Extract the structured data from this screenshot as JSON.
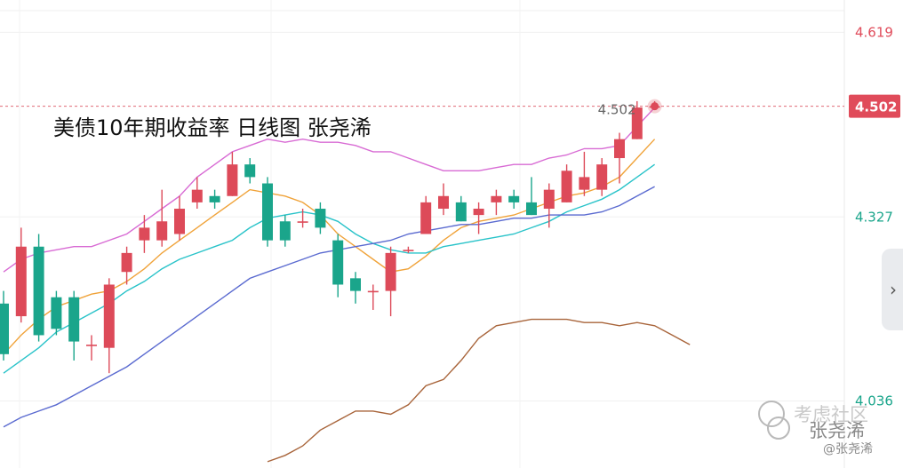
{
  "chart_data": {
    "type": "candlestick",
    "title": "美债10年期收益率 日线图  张尧浠",
    "y_ticks": [
      "4.619",
      "4.327",
      "4.036"
    ],
    "current_price": "4.502",
    "current_price_marker": "4.502",
    "ylim": [
      3.93,
      4.67
    ],
    "candles": [
      {
        "o": 4.19,
        "c": 4.11,
        "h": 4.21,
        "l": 4.1
      },
      {
        "o": 4.17,
        "c": 4.28,
        "h": 4.31,
        "l": 4.16
      },
      {
        "o": 4.28,
        "c": 4.14,
        "h": 4.3,
        "l": 4.13
      },
      {
        "o": 4.2,
        "c": 4.15,
        "h": 4.21,
        "l": 4.14
      },
      {
        "o": 4.2,
        "c": 4.13,
        "h": 4.21,
        "l": 4.1
      },
      {
        "o": 4.125,
        "c": 4.125,
        "h": 4.14,
        "l": 4.1
      },
      {
        "o": 4.12,
        "c": 4.22,
        "h": 4.23,
        "l": 4.08
      },
      {
        "o": 4.24,
        "c": 4.27,
        "h": 4.28,
        "l": 4.22
      },
      {
        "o": 4.29,
        "c": 4.31,
        "h": 4.33,
        "l": 4.27
      },
      {
        "o": 4.29,
        "c": 4.32,
        "h": 4.37,
        "l": 4.28
      },
      {
        "o": 4.3,
        "c": 4.34,
        "h": 4.36,
        "l": 4.29
      },
      {
        "o": 4.35,
        "c": 4.37,
        "h": 4.39,
        "l": 4.34
      },
      {
        "o": 4.36,
        "c": 4.35,
        "h": 4.37,
        "l": 4.34
      },
      {
        "o": 4.36,
        "c": 4.41,
        "h": 4.43,
        "l": 4.36
      },
      {
        "o": 4.41,
        "c": 4.39,
        "h": 4.42,
        "l": 4.38
      },
      {
        "o": 4.38,
        "c": 4.29,
        "h": 4.39,
        "l": 4.28
      },
      {
        "o": 4.32,
        "c": 4.29,
        "h": 4.33,
        "l": 4.28
      },
      {
        "o": 4.32,
        "c": 4.32,
        "h": 4.34,
        "l": 4.31
      },
      {
        "o": 4.34,
        "c": 4.31,
        "h": 4.35,
        "l": 4.3
      },
      {
        "o": 4.29,
        "c": 4.22,
        "h": 4.3,
        "l": 4.2
      },
      {
        "o": 4.23,
        "c": 4.21,
        "h": 4.24,
        "l": 4.19
      },
      {
        "o": 4.21,
        "c": 4.21,
        "h": 4.22,
        "l": 4.18
      },
      {
        "o": 4.21,
        "c": 4.27,
        "h": 4.28,
        "l": 4.17
      },
      {
        "o": 4.275,
        "c": 4.275,
        "h": 4.28,
        "l": 4.27
      },
      {
        "o": 4.3,
        "c": 4.35,
        "h": 4.36,
        "l": 4.3
      },
      {
        "o": 4.34,
        "c": 4.36,
        "h": 4.38,
        "l": 4.33
      },
      {
        "o": 4.35,
        "c": 4.32,
        "h": 4.36,
        "l": 4.32
      },
      {
        "o": 4.33,
        "c": 4.34,
        "h": 4.35,
        "l": 4.3
      },
      {
        "o": 4.35,
        "c": 4.36,
        "h": 4.37,
        "l": 4.33
      },
      {
        "o": 4.36,
        "c": 4.35,
        "h": 4.37,
        "l": 4.34
      },
      {
        "o": 4.35,
        "c": 4.33,
        "h": 4.39,
        "l": 4.33
      },
      {
        "o": 4.34,
        "c": 4.37,
        "h": 4.38,
        "l": 4.31
      },
      {
        "o": 4.35,
        "c": 4.4,
        "h": 4.41,
        "l": 4.35
      },
      {
        "o": 4.37,
        "c": 4.39,
        "h": 4.43,
        "l": 4.36
      },
      {
        "o": 4.37,
        "c": 4.41,
        "h": 4.42,
        "l": 4.36
      },
      {
        "o": 4.42,
        "c": 4.45,
        "h": 4.46,
        "l": 4.38
      },
      {
        "o": 4.45,
        "c": 4.5,
        "h": 4.51,
        "l": 4.45
      },
      {
        "o": 4.5,
        "c": 4.502,
        "h": 4.51,
        "l": 4.5
      }
    ],
    "overlays": [
      {
        "color": "#d86bd4",
        "values": [
          4.24,
          4.26,
          4.27,
          4.275,
          4.28,
          4.28,
          4.29,
          4.3,
          4.32,
          4.34,
          4.36,
          4.39,
          4.41,
          4.43,
          4.44,
          4.45,
          4.445,
          4.45,
          4.445,
          4.445,
          4.44,
          4.43,
          4.43,
          4.42,
          4.41,
          4.4,
          4.4,
          4.4,
          4.405,
          4.41,
          4.41,
          4.42,
          4.425,
          4.435,
          4.435,
          4.44,
          4.47,
          4.5
        ]
      },
      {
        "color": "#f0a33a",
        "values": [
          4.11,
          4.14,
          4.165,
          4.185,
          4.195,
          4.205,
          4.21,
          4.225,
          4.245,
          4.27,
          4.29,
          4.31,
          4.33,
          4.35,
          4.37,
          4.365,
          4.36,
          4.35,
          4.33,
          4.3,
          4.28,
          4.26,
          4.24,
          4.245,
          4.265,
          4.29,
          4.31,
          4.32,
          4.325,
          4.33,
          4.34,
          4.35,
          4.36,
          4.365,
          4.375,
          4.39,
          4.42,
          4.45
        ]
      },
      {
        "color": "#29c3c9",
        "values": [
          4.08,
          4.1,
          4.12,
          4.145,
          4.16,
          4.175,
          4.19,
          4.21,
          4.225,
          4.245,
          4.26,
          4.27,
          4.28,
          4.29,
          4.31,
          4.325,
          4.33,
          4.335,
          4.33,
          4.32,
          4.3,
          4.285,
          4.275,
          4.27,
          4.27,
          4.28,
          4.285,
          4.29,
          4.295,
          4.3,
          4.31,
          4.32,
          4.335,
          4.345,
          4.355,
          4.37,
          4.39,
          4.41
        ]
      },
      {
        "color": "#5a6ad0",
        "values": [
          3.995,
          4.01,
          4.02,
          4.03,
          4.045,
          4.06,
          4.075,
          4.09,
          4.11,
          4.13,
          4.15,
          4.17,
          4.19,
          4.21,
          4.23,
          4.24,
          4.25,
          4.26,
          4.27,
          4.275,
          4.28,
          4.285,
          4.29,
          4.3,
          4.305,
          4.31,
          4.315,
          4.315,
          4.32,
          4.325,
          4.325,
          4.33,
          4.33,
          4.33,
          4.335,
          4.345,
          4.36,
          4.375
        ]
      },
      {
        "color": "#a8643a",
        "start": 15,
        "values": [
          3.94,
          3.95,
          3.965,
          3.99,
          4.005,
          4.02,
          4.02,
          4.015,
          4.03,
          4.06,
          4.07,
          4.1,
          4.135,
          4.155,
          4.16,
          4.165,
          4.165,
          4.165,
          4.16,
          4.16,
          4.155,
          4.16,
          4.155,
          4.14,
          4.125
        ]
      }
    ]
  },
  "watermark": {
    "brand": "考虑社区",
    "name": "张尧浠",
    "handle": "@张尧浠"
  },
  "side_tab": {
    "label": "›"
  },
  "colors": {
    "up": "#dd4a59",
    "down": "#1aa58b",
    "price_line": "#e06a78",
    "price_badge": "#e04b5a",
    "tick_top": "#e04b5a",
    "tick_other": "#1aa58b"
  }
}
